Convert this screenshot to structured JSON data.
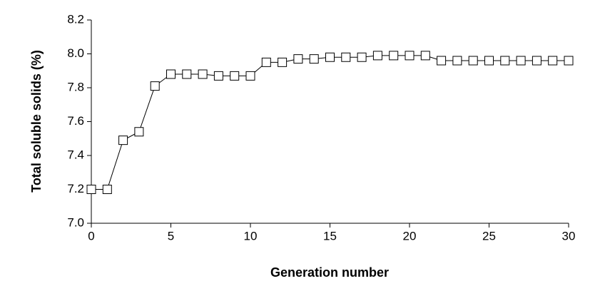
{
  "chart_data": {
    "type": "line",
    "x_label": "Generation number",
    "y_label": "Total soluble solids (%)",
    "x": [
      0,
      1,
      2,
      3,
      4,
      5,
      6,
      7,
      8,
      9,
      10,
      11,
      12,
      13,
      14,
      15,
      16,
      17,
      18,
      19,
      20,
      21,
      22,
      23,
      24,
      25,
      26,
      27,
      28,
      29,
      30
    ],
    "values": [
      7.2,
      7.2,
      7.49,
      7.54,
      7.81,
      7.88,
      7.88,
      7.88,
      7.87,
      7.87,
      7.87,
      7.95,
      7.95,
      7.97,
      7.97,
      7.98,
      7.98,
      7.98,
      7.99,
      7.99,
      7.99,
      7.99,
      7.96,
      7.96,
      7.96,
      7.96,
      7.96,
      7.96,
      7.96,
      7.96,
      7.96
    ],
    "color": "#000000",
    "marker": "square",
    "xlim": [
      0,
      30
    ],
    "xticks": [
      0,
      5,
      10,
      15,
      20,
      25,
      30
    ],
    "ylim": [
      7,
      8.2
    ],
    "yticks": [
      {
        "value": 7,
        "label": "7.0"
      },
      7.2,
      7.4,
      7.6,
      7.8,
      {
        "value": 8,
        "label": "8.0"
      },
      8.2
    ],
    "grid": false
  }
}
